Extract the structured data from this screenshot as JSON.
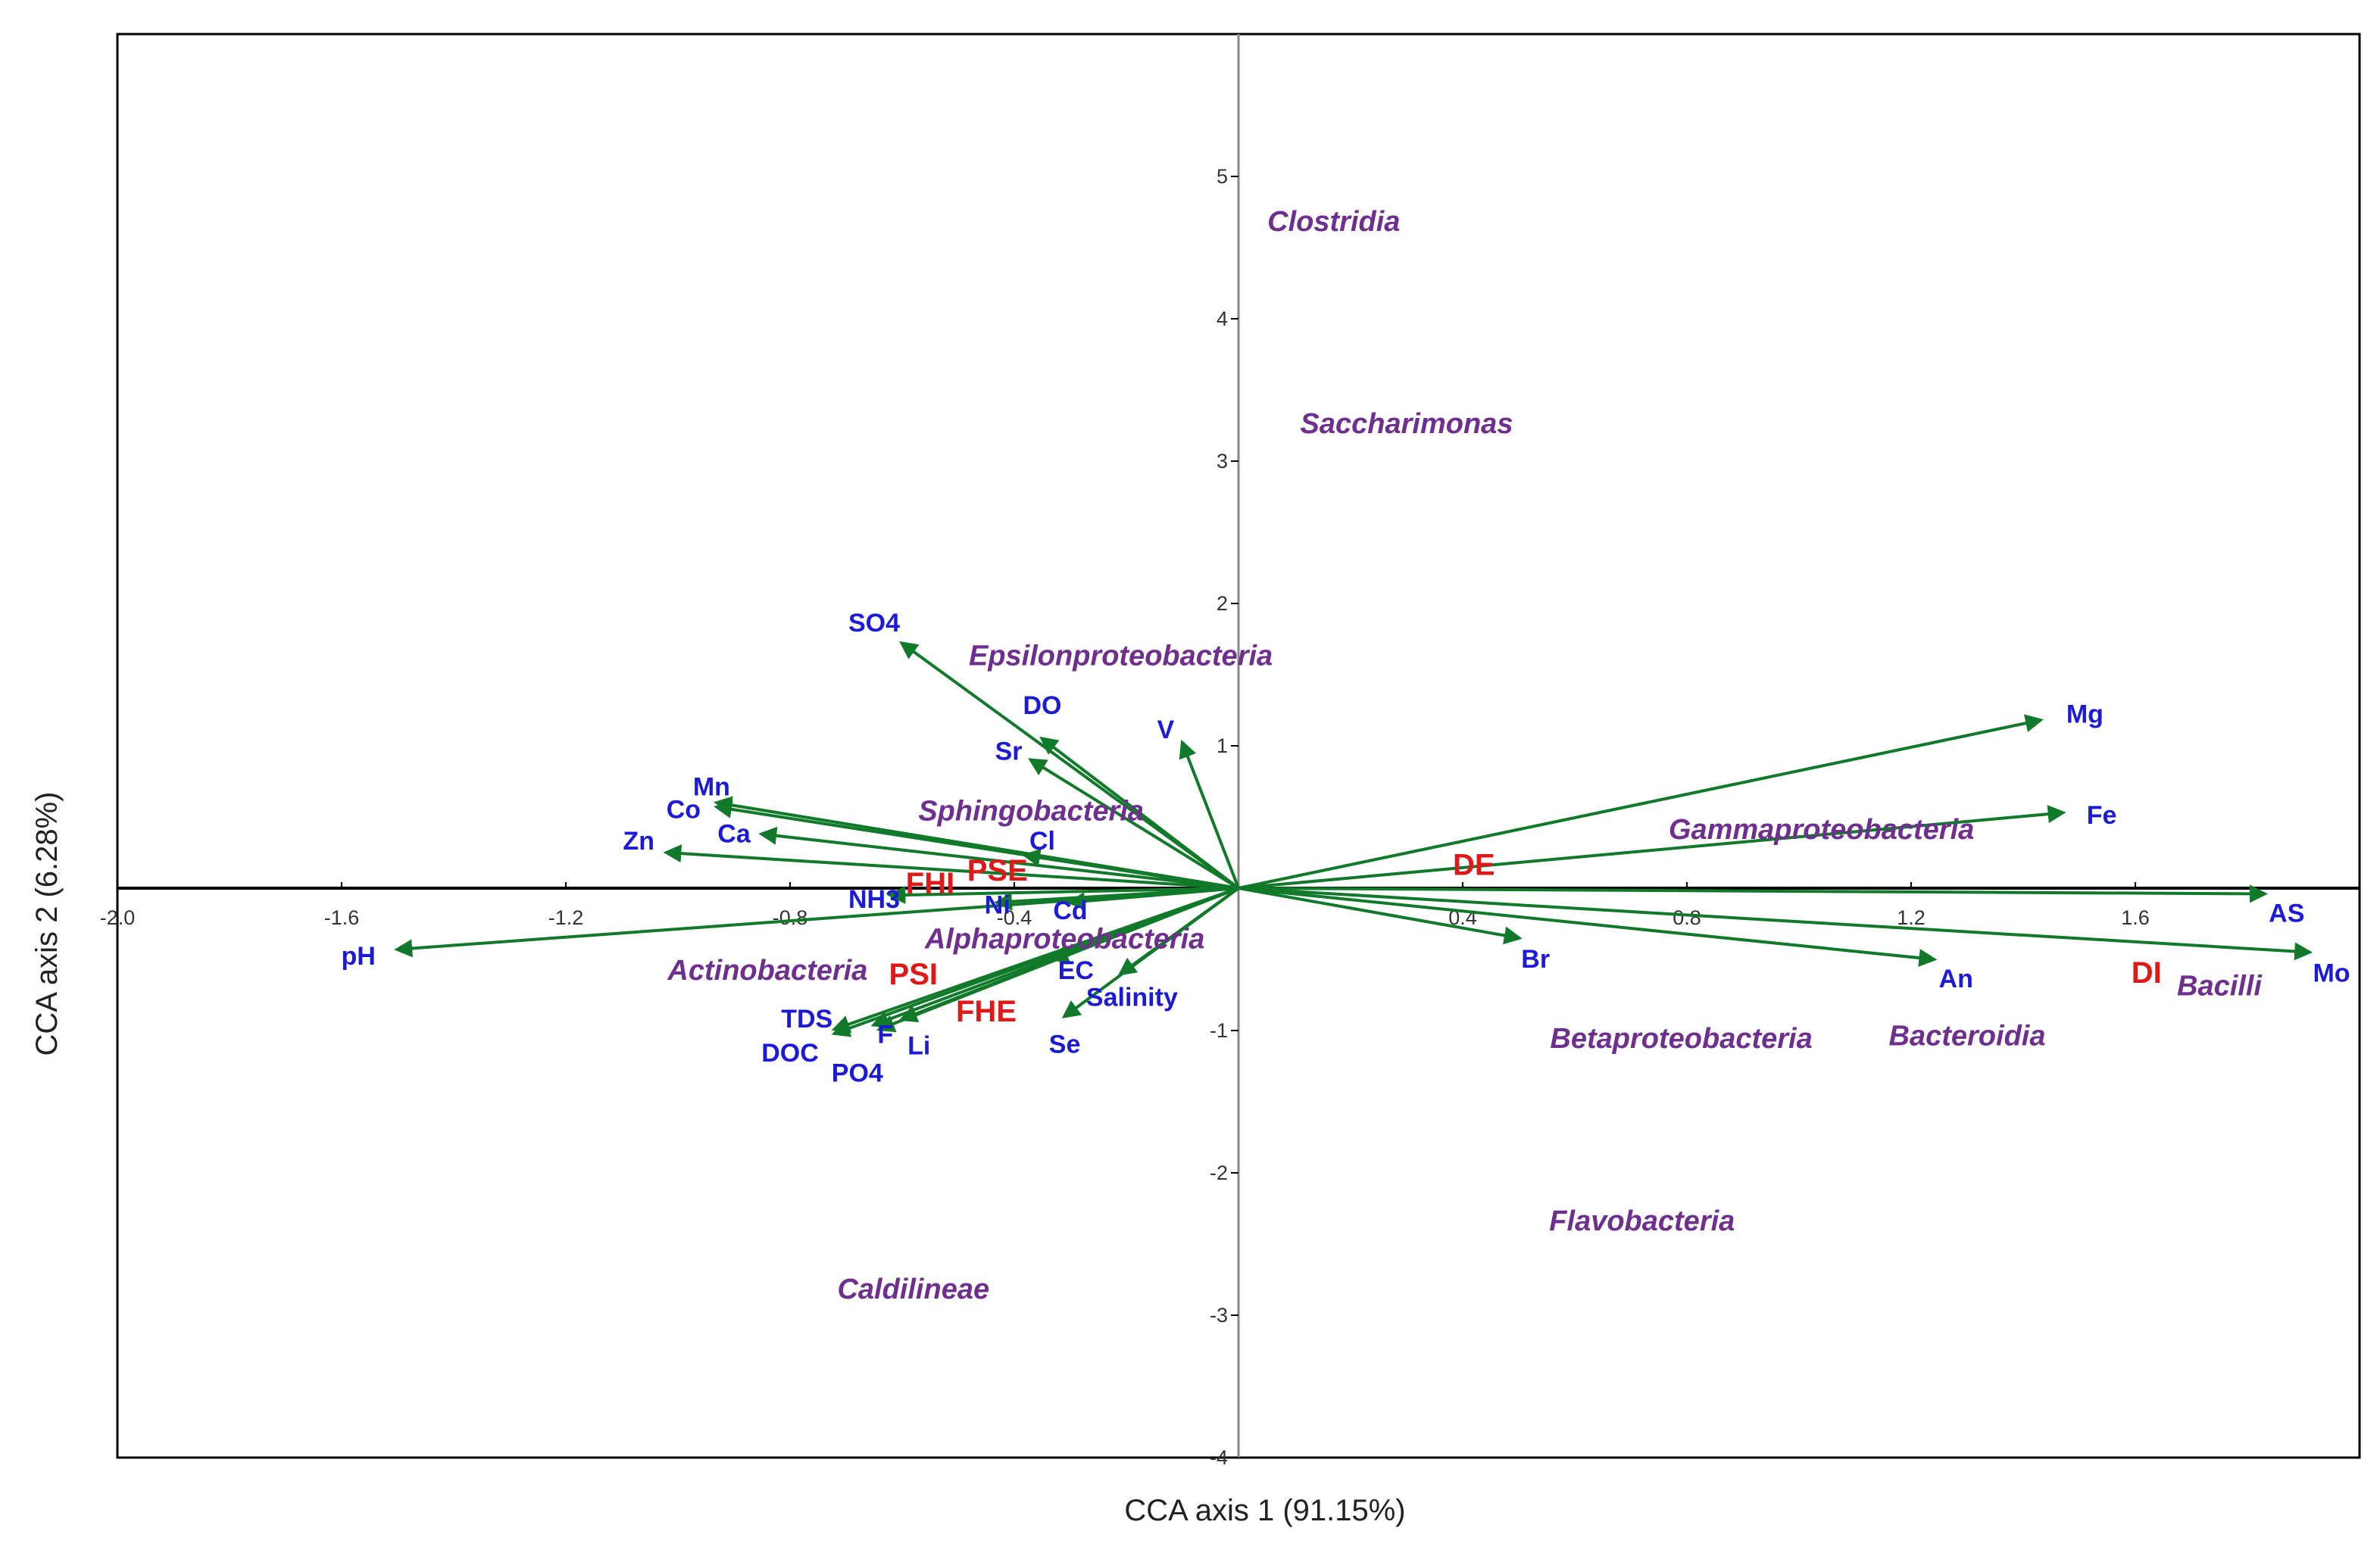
{
  "chart_data": {
    "type": "scatter",
    "subtype": "CCA biplot",
    "xlabel": "CCA axis 1 (91.15%)",
    "ylabel": "CCA axis 2 (6.28%)",
    "xlim": [
      -2.0,
      2.0
    ],
    "ylim": [
      -4.0,
      6.0
    ],
    "x_ticks": [
      {
        "value": -2.0,
        "label": "-2.0"
      },
      {
        "value": -1.6,
        "label": "-1.6"
      },
      {
        "value": -1.2,
        "label": "-1.2"
      },
      {
        "value": -0.8,
        "label": "-0.8"
      },
      {
        "value": -0.4,
        "label": "-0.4"
      },
      {
        "value": 0.4,
        "label": "0.4"
      },
      {
        "value": 0.8,
        "label": "0.8"
      },
      {
        "value": 1.2,
        "label": "1.2"
      },
      {
        "value": 1.6,
        "label": "1.6"
      }
    ],
    "y_ticks": [
      {
        "value": 5,
        "label": "5"
      },
      {
        "value": 4,
        "label": "4"
      },
      {
        "value": 3,
        "label": "3"
      },
      {
        "value": 2,
        "label": "2"
      },
      {
        "value": 1,
        "label": "1"
      },
      {
        "value": -1,
        "label": "-1"
      },
      {
        "value": -2,
        "label": "-2"
      },
      {
        "value": -3,
        "label": "-3"
      },
      {
        "value": -4,
        "label": "-4"
      }
    ],
    "arrow_color": "#117a2a",
    "environmental_vectors": [
      {
        "name": "SO4",
        "x": -0.6,
        "y": 1.72,
        "lx": -0.65,
        "ly": 1.85
      },
      {
        "name": "DO",
        "x": -0.35,
        "y": 1.05,
        "lx": -0.35,
        "ly": 1.27
      },
      {
        "name": "Sr",
        "x": -0.37,
        "y": 0.9,
        "lx": -0.41,
        "ly": 0.95
      },
      {
        "name": "V",
        "x": -0.1,
        "y": 1.02,
        "lx": -0.13,
        "ly": 1.1
      },
      {
        "name": "Mn",
        "x": -0.93,
        "y": 0.6,
        "lx": -0.94,
        "ly": 0.7
      },
      {
        "name": "Co",
        "x": -0.93,
        "y": 0.57,
        "lx": -0.99,
        "ly": 0.54
      },
      {
        "name": "Ca",
        "x": -0.85,
        "y": 0.38,
        "lx": -0.9,
        "ly": 0.37
      },
      {
        "name": "Zn",
        "x": -1.02,
        "y": 0.25,
        "lx": -1.07,
        "ly": 0.32
      },
      {
        "name": "Cl",
        "x": -0.38,
        "y": 0.23,
        "lx": -0.35,
        "ly": 0.32
      },
      {
        "name": "NH3",
        "x": -0.62,
        "y": -0.05,
        "lx": -0.65,
        "ly": -0.09
      },
      {
        "name": "Ni",
        "x": -0.43,
        "y": -0.1,
        "lx": -0.43,
        "ly": -0.13
      },
      {
        "name": "Cd",
        "x": -0.3,
        "y": -0.1,
        "lx": -0.3,
        "ly": -0.17
      },
      {
        "name": "pH",
        "x": -1.5,
        "y": -0.43,
        "lx": -1.57,
        "ly": -0.49
      },
      {
        "name": "EC",
        "x": -0.33,
        "y": -0.5,
        "lx": -0.29,
        "ly": -0.59
      },
      {
        "name": "Salinity",
        "x": -0.21,
        "y": -0.6,
        "lx": -0.19,
        "ly": -0.78
      },
      {
        "name": "TDS",
        "x": -0.72,
        "y": -0.99,
        "lx": -0.77,
        "ly": -0.93
      },
      {
        "name": "DOC",
        "x": -0.72,
        "y": -1.02,
        "lx": -0.8,
        "ly": -1.17
      },
      {
        "name": "F",
        "x": -0.65,
        "y": -0.96,
        "lx": -0.63,
        "ly": -1.04
      },
      {
        "name": "Li",
        "x": -0.6,
        "y": -0.92,
        "lx": -0.57,
        "ly": -1.12
      },
      {
        "name": "PO4",
        "x": -0.64,
        "y": -0.99,
        "lx": -0.68,
        "ly": -1.31
      },
      {
        "name": "Se",
        "x": -0.31,
        "y": -0.9,
        "lx": -0.31,
        "ly": -1.11
      },
      {
        "name": "Mg",
        "x": 1.43,
        "y": 1.18,
        "lx": 1.51,
        "ly": 1.21
      },
      {
        "name": "Fe",
        "x": 1.47,
        "y": 0.53,
        "lx": 1.54,
        "ly": 0.5
      },
      {
        "name": "Br",
        "x": 0.5,
        "y": -0.35,
        "lx": 0.53,
        "ly": -0.51
      },
      {
        "name": "An",
        "x": 1.24,
        "y": -0.5,
        "lx": 1.28,
        "ly": -0.65
      },
      {
        "name": "AS",
        "x": 1.83,
        "y": -0.04,
        "lx": 1.87,
        "ly": -0.19
      },
      {
        "name": "Mo",
        "x": 1.91,
        "y": -0.45,
        "lx": 1.95,
        "ly": -0.61
      }
    ],
    "taxa": [
      {
        "name": "Clostridia",
        "x": 0.17,
        "y": 4.67
      },
      {
        "name": "Saccharimonas",
        "x": 0.3,
        "y": 3.25
      },
      {
        "name": "Epsilonproteobacteria",
        "x": -0.21,
        "y": 1.62
      },
      {
        "name": "Sphingobacteria",
        "x": -0.37,
        "y": 0.53
      },
      {
        "name": "Gammaproteobacteria",
        "x": 1.04,
        "y": 0.4
      },
      {
        "name": "Alphaproteobacteria",
        "x": -0.31,
        "y": -0.37
      },
      {
        "name": "Actinobacteria",
        "x": -0.84,
        "y": -0.59
      },
      {
        "name": "Betaproteobacteria",
        "x": 0.79,
        "y": -1.07
      },
      {
        "name": "Bacteroidia",
        "x": 1.3,
        "y": -1.05
      },
      {
        "name": "Bacilli",
        "x": 1.75,
        "y": -0.7
      },
      {
        "name": "Flavobacteria",
        "x": 0.72,
        "y": -2.35
      },
      {
        "name": "Caldilineae",
        "x": -0.58,
        "y": -2.83
      }
    ],
    "sites": [
      {
        "name": "FHI",
        "x": -0.55,
        "y": 0.02
      },
      {
        "name": "PSE",
        "x": -0.43,
        "y": 0.11
      },
      {
        "name": "PSI",
        "x": -0.58,
        "y": -0.62
      },
      {
        "name": "FHE",
        "x": -0.45,
        "y": -0.88
      },
      {
        "name": "DE",
        "x": 0.42,
        "y": 0.15
      },
      {
        "name": "DI",
        "x": 1.62,
        "y": -0.61
      }
    ]
  }
}
